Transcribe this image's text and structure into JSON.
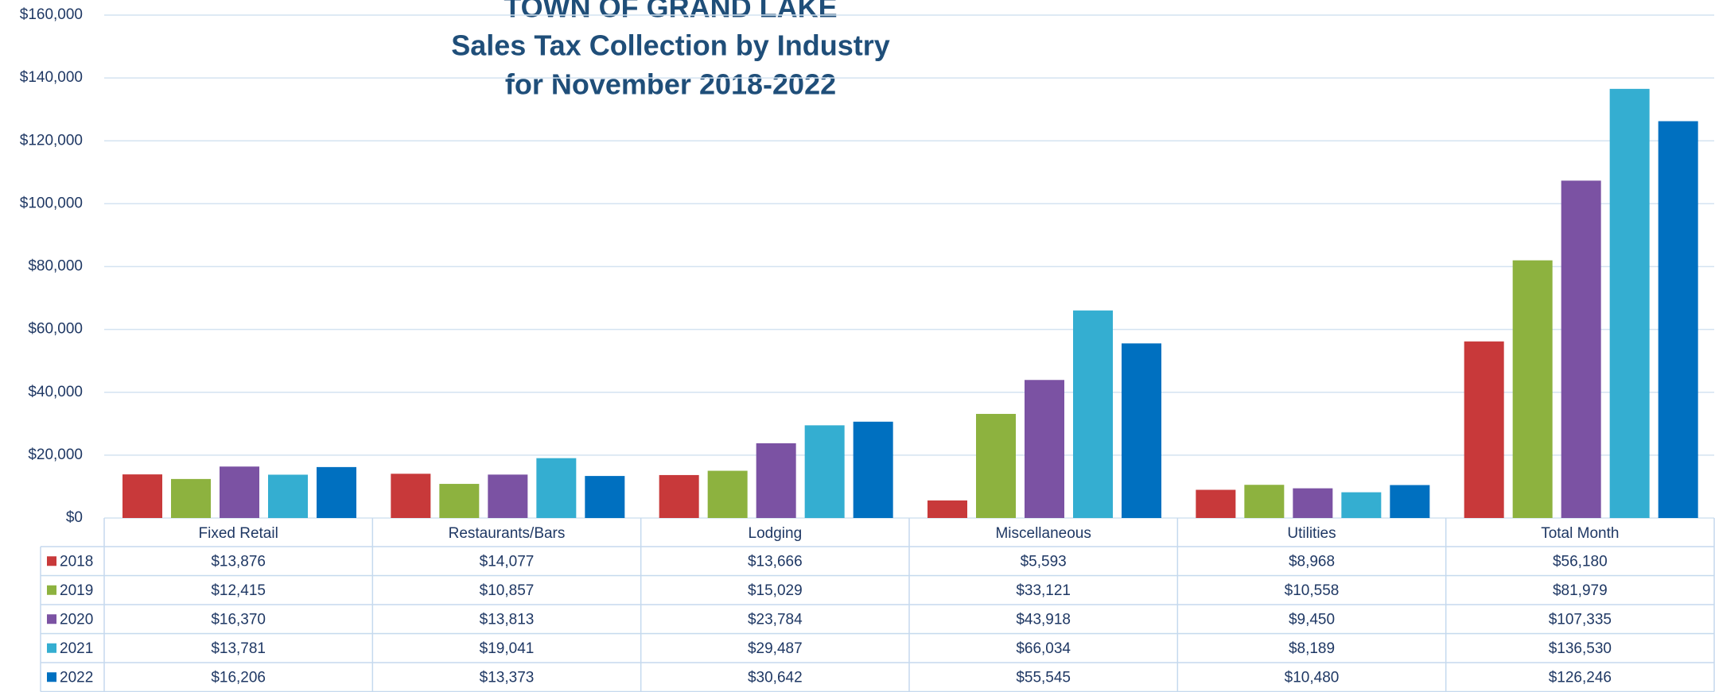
{
  "chart_data": {
    "type": "bar",
    "title": [
      "TOWN OF GRAND LAKE",
      "Sales Tax Collection by Industry",
      "for November 2018-2022"
    ],
    "categories": [
      "Fixed Retail",
      "Restaurants/Bars",
      "Lodging",
      "Miscellaneous",
      "Utilities",
      "Total Month"
    ],
    "series": [
      {
        "name": "2018",
        "color": "#c8393a",
        "values": [
          13876,
          14077,
          13666,
          5593,
          8968,
          56180
        ],
        "value_labels": [
          "$13,876",
          "$14,077",
          "$13,666",
          "$5,593",
          "$8,968",
          "$56,180"
        ]
      },
      {
        "name": "2019",
        "color": "#8db23f",
        "values": [
          12415,
          10857,
          15029,
          33121,
          10558,
          81979
        ],
        "value_labels": [
          "$12,415",
          "$10,857",
          "$15,029",
          "$33,121",
          "$10,558",
          "$81,979"
        ]
      },
      {
        "name": "2020",
        "color": "#7b52a3",
        "values": [
          16370,
          13813,
          23784,
          43918,
          9450,
          107335
        ],
        "value_labels": [
          "$16,370",
          "$13,813",
          "$23,784",
          "$43,918",
          "$9,450",
          "$107,335"
        ]
      },
      {
        "name": "2021",
        "color": "#34aed1",
        "values": [
          13781,
          19041,
          29487,
          66034,
          8189,
          136530
        ],
        "value_labels": [
          "$13,781",
          "$19,041",
          "$29,487",
          "$66,034",
          "$8,189",
          "$136,530"
        ]
      },
      {
        "name": "2022",
        "color": "#0070c0",
        "values": [
          16206,
          13373,
          30642,
          55545,
          10480,
          126246
        ],
        "value_labels": [
          "$16,206",
          "$13,373",
          "$30,642",
          "$55,545",
          "$10,480",
          "$126,246"
        ]
      }
    ],
    "ylim": [
      0,
      160000
    ],
    "yticks": [
      {
        "value": 0,
        "label": "$0"
      },
      {
        "value": 20000,
        "label": "$20,000"
      },
      {
        "value": 40000,
        "label": "$40,000"
      },
      {
        "value": 60000,
        "label": "$60,000"
      },
      {
        "value": 80000,
        "label": "$80,000"
      },
      {
        "value": 100000,
        "label": "$100,000"
      },
      {
        "value": 120000,
        "label": "$120,000"
      },
      {
        "value": 140000,
        "label": "$140,000"
      },
      {
        "value": 160000,
        "label": "$160,000"
      }
    ],
    "grid": true
  }
}
